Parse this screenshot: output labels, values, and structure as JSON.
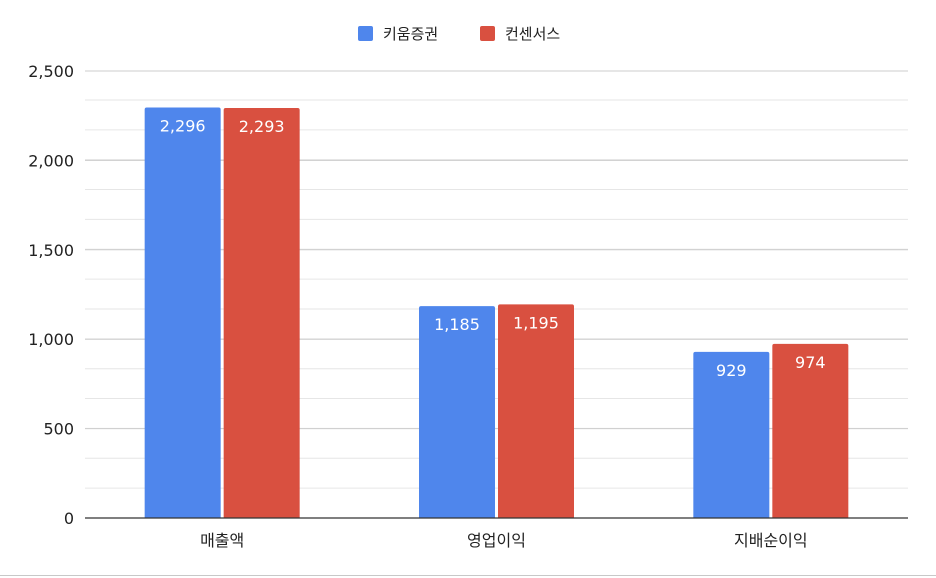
{
  "chart_data": {
    "type": "bar",
    "title": "",
    "xlabel": "",
    "ylabel": "",
    "categories": [
      "매출액",
      "영업이익",
      "지배순이익"
    ],
    "series": [
      {
        "name": "키움증권",
        "values": [
          2296,
          1185,
          929
        ],
        "labels": [
          "2,296",
          "1,185",
          "929"
        ],
        "color": "#4f86ec"
      },
      {
        "name": "컨센서스",
        "values": [
          2293,
          1195,
          974
        ],
        "labels": [
          "2,293",
          "1,195",
          "974"
        ],
        "color": "#d95040"
      }
    ],
    "ylim": [
      0,
      2500
    ],
    "yticks": [
      0,
      500,
      1000,
      1500,
      2000,
      2500
    ],
    "ytick_labels": [
      "0",
      "500",
      "1,000",
      "1,500",
      "2,000",
      "2,500"
    ],
    "minor_grid_step": 167,
    "grid": true,
    "legend_position": "top-center"
  }
}
